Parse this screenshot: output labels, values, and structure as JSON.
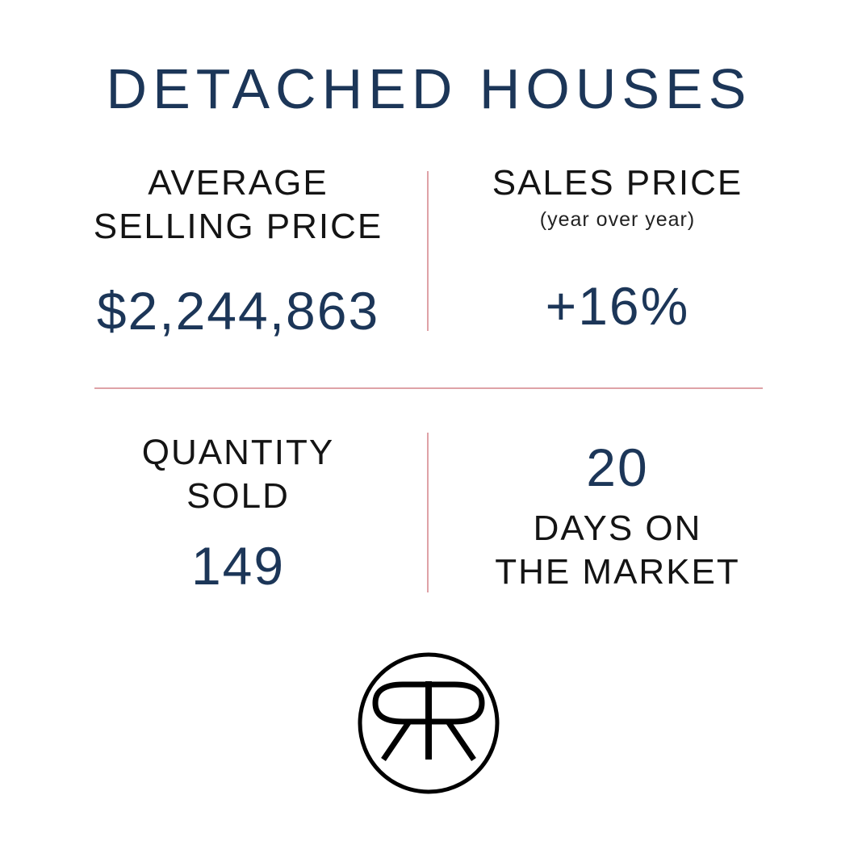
{
  "title": "DETACHED HOUSES",
  "stats": {
    "avg_price": {
      "label_line1": "AVERAGE",
      "label_line2": "SELLING PRICE",
      "value": "$2,244,863"
    },
    "sales_price": {
      "label": "SALES PRICE",
      "sublabel": "(year over year)",
      "value": "+16%"
    },
    "quantity": {
      "label_line1": "QUANTITY",
      "label_line2": "SOLD",
      "value": "149"
    },
    "days": {
      "value": "20",
      "label_line1": "DAYS ON",
      "label_line2": "THE MARKET"
    }
  },
  "colors": {
    "accent": "#1c3658",
    "divider": "#dfa2a7",
    "text": "#141414"
  },
  "logo": {
    "icon": "rr-monogram-logo",
    "text": "RR"
  }
}
